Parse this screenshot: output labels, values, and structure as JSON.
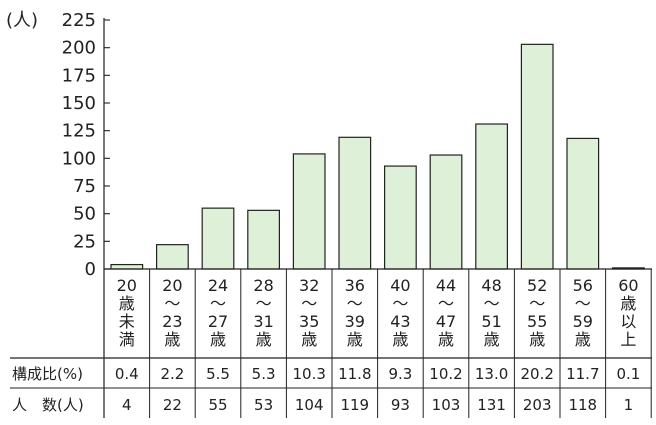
{
  "chart_data": {
    "type": "bar",
    "y_unit_label": "(人)",
    "ylim": [
      0,
      225
    ],
    "yticks": [
      "225",
      "200",
      "175",
      "150",
      "125",
      "100",
      "75",
      "50",
      "25",
      "0"
    ],
    "categories": [
      [
        "20",
        "歳",
        "未",
        "満"
      ],
      [
        "20",
        "〜",
        "23",
        "歳"
      ],
      [
        "24",
        "〜",
        "27",
        "歳"
      ],
      [
        "28",
        "〜",
        "31",
        "歳"
      ],
      [
        "32",
        "〜",
        "35",
        "歳"
      ],
      [
        "36",
        "〜",
        "39",
        "歳"
      ],
      [
        "40",
        "〜",
        "43",
        "歳"
      ],
      [
        "44",
        "〜",
        "47",
        "歳"
      ],
      [
        "48",
        "〜",
        "51",
        "歳"
      ],
      [
        "52",
        "〜",
        "55",
        "歳"
      ],
      [
        "56",
        "〜",
        "59",
        "歳"
      ],
      [
        "60",
        "歳",
        "以",
        "上"
      ]
    ],
    "values": [
      4,
      22,
      55,
      53,
      104,
      119,
      93,
      103,
      131,
      203,
      118,
      1
    ],
    "bar_color": "#dff0d8",
    "table": {
      "ratio_header": "構成比(%)",
      "ratio_values": [
        "0.4",
        "2.2",
        "5.5",
        "5.3",
        "10.3",
        "11.8",
        "9.3",
        "10.2",
        "13.0",
        "20.2",
        "11.7",
        "0.1"
      ],
      "count_header": "人　数(人)",
      "count_values": [
        "4",
        "22",
        "55",
        "53",
        "104",
        "119",
        "93",
        "103",
        "131",
        "203",
        "118",
        "1"
      ]
    }
  }
}
